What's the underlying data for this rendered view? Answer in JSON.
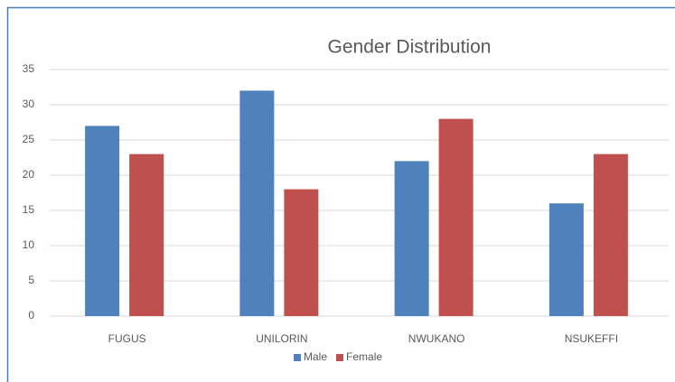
{
  "chart_data": {
    "type": "bar",
    "title": "Gender Distribution",
    "categories": [
      "FUGUS",
      "UNILORIN",
      "NWUKANO",
      "NSUKEFFI"
    ],
    "series": [
      {
        "name": "Male",
        "color": "#4f81bd",
        "values": [
          27,
          32,
          22,
          16
        ]
      },
      {
        "name": "Female",
        "color": "#c0504d",
        "values": [
          23,
          18,
          28,
          23
        ]
      }
    ],
    "ylim": [
      0,
      35
    ],
    "yticks": [
      0,
      5,
      10,
      15,
      20,
      25,
      30,
      35
    ],
    "grid": true,
    "legend": "bottom"
  }
}
